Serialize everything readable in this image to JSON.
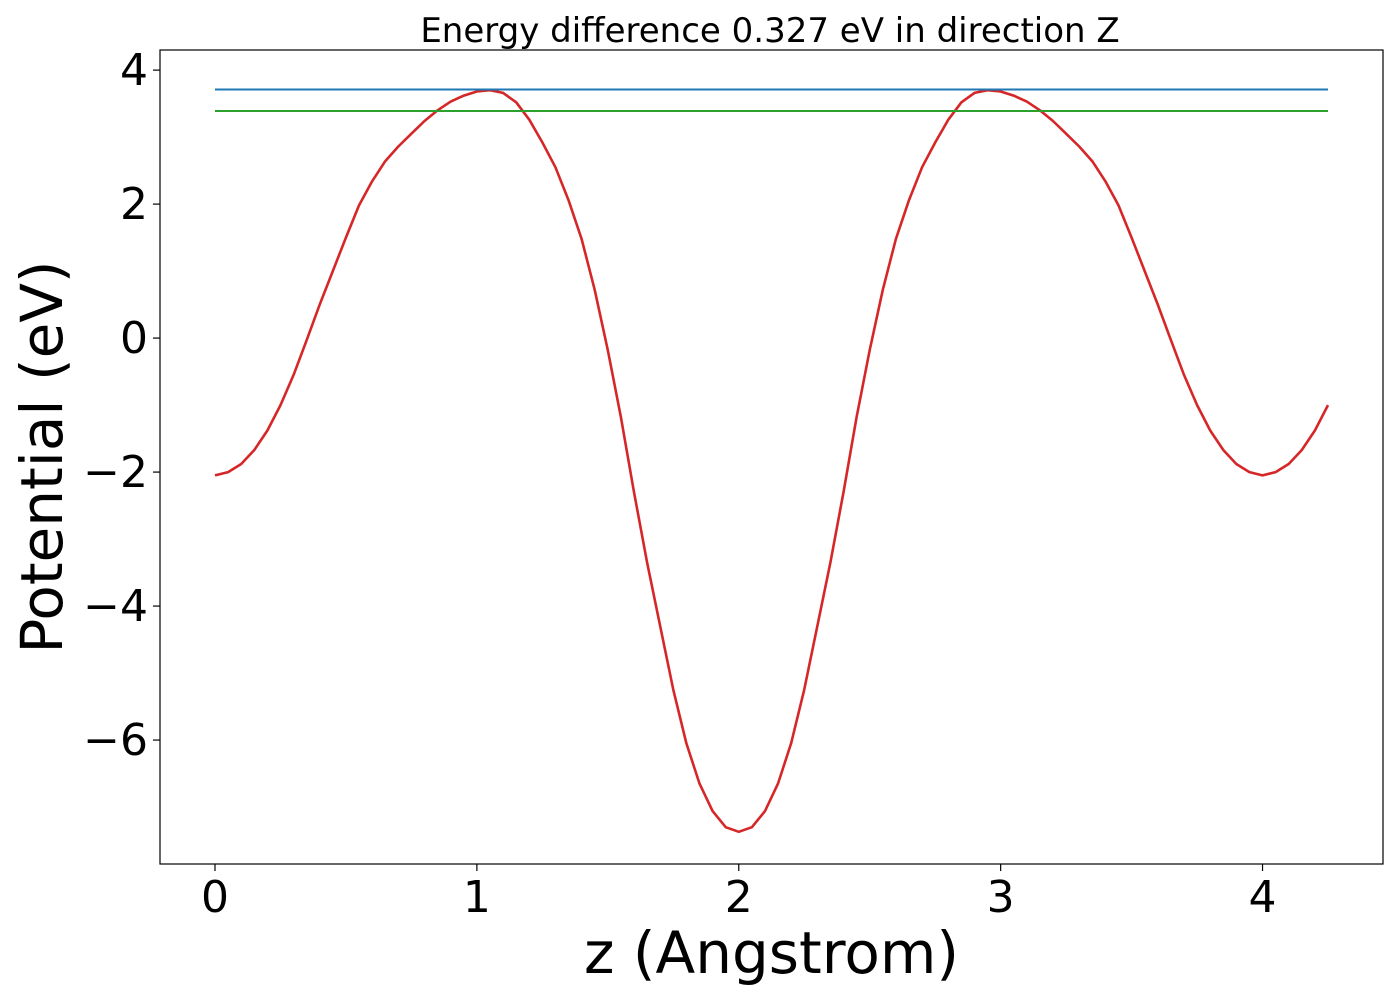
{
  "chart_data": {
    "type": "line",
    "title": "Energy difference 0.327 eV in direction Z",
    "xlabel": "z (Angstrom)",
    "ylabel": "Potential (eV)",
    "xlim": [
      -0.21,
      4.46
    ],
    "ylim": [
      -7.85,
      4.3
    ],
    "x_ticks": [
      0,
      1,
      2,
      3,
      4
    ],
    "y_ticks": [
      -6,
      -4,
      -2,
      0,
      2,
      4
    ],
    "x_tick_labels": [
      "0",
      "1",
      "2",
      "3",
      "4"
    ],
    "y_tick_labels": [
      "−6",
      "−4",
      "−2",
      "0",
      "2",
      "4"
    ],
    "grid": false,
    "legend": "none",
    "series": [
      {
        "color": "#d62728",
        "x": [
          0.0,
          0.05,
          0.1,
          0.15,
          0.2,
          0.25,
          0.3,
          0.35,
          0.4,
          0.45,
          0.5,
          0.55,
          0.6,
          0.65,
          0.7,
          0.75,
          0.8,
          0.85,
          0.9,
          0.95,
          1.0,
          1.05,
          1.1,
          1.15,
          1.2,
          1.25,
          1.3,
          1.35,
          1.4,
          1.45,
          1.5,
          1.55,
          1.6,
          1.65,
          1.7,
          1.75,
          1.8,
          1.85,
          1.9,
          1.95,
          2.0,
          2.05,
          2.1,
          2.15,
          2.2,
          2.25,
          2.3,
          2.35,
          2.4,
          2.45,
          2.5,
          2.55,
          2.6,
          2.65,
          2.7,
          2.75,
          2.8,
          2.85,
          2.9,
          2.95,
          3.0,
          3.05,
          3.1,
          3.15,
          3.2,
          3.25,
          3.3,
          3.35,
          3.4,
          3.45,
          3.5,
          3.55,
          3.6,
          3.65,
          3.7,
          3.75,
          3.8,
          3.85,
          3.9,
          3.95,
          4.0,
          4.05,
          4.1,
          4.15,
          4.2,
          4.25
        ],
        "y": [
          -2.05,
          -2.0,
          -1.88,
          -1.67,
          -1.38,
          -1.0,
          -0.55,
          -0.03,
          0.5,
          1.0,
          1.5,
          1.98,
          2.34,
          2.64,
          2.86,
          3.05,
          3.24,
          3.4,
          3.53,
          3.62,
          3.68,
          3.7,
          3.66,
          3.52,
          3.26,
          2.92,
          2.55,
          2.06,
          1.48,
          0.72,
          -0.18,
          -1.18,
          -2.3,
          -3.35,
          -4.3,
          -5.25,
          -6.05,
          -6.65,
          -7.06,
          -7.3,
          -7.37,
          -7.3,
          -7.06,
          -6.65,
          -6.05,
          -5.25,
          -4.3,
          -3.35,
          -2.3,
          -1.18,
          -0.18,
          0.72,
          1.48,
          2.06,
          2.55,
          2.92,
          3.26,
          3.52,
          3.66,
          3.7,
          3.68,
          3.62,
          3.53,
          3.4,
          3.24,
          3.05,
          2.86,
          2.64,
          2.34,
          1.98,
          1.5,
          1.0,
          0.5,
          -0.03,
          -0.55,
          -1.0,
          -1.38,
          -1.67,
          -1.88,
          -2.0,
          -2.05,
          -2.0,
          -1.88,
          -1.67,
          -1.38,
          -1.0
        ]
      },
      {
        "color": "#1f77b4",
        "x": [
          0.0,
          4.25
        ],
        "y": [
          3.71,
          3.71
        ]
      },
      {
        "color": "#2ca02c",
        "x": [
          0.0,
          4.25
        ],
        "y": [
          3.39,
          3.39
        ]
      }
    ]
  },
  "colors": {
    "axis": "#000000",
    "background": "#ffffff"
  }
}
